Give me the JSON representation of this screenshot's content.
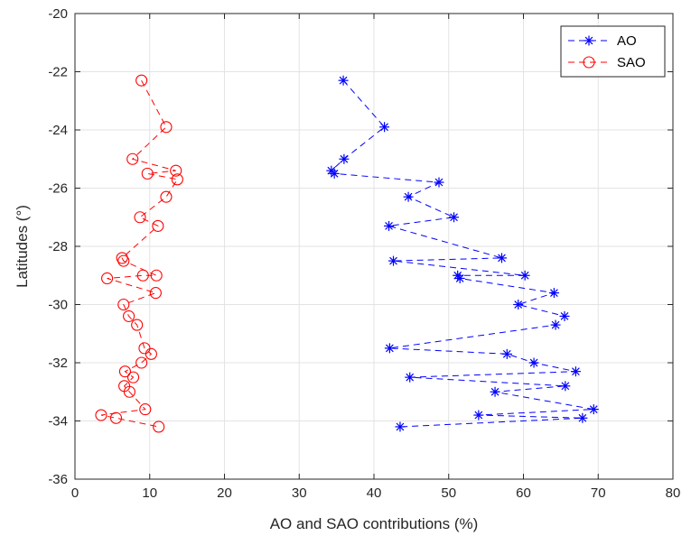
{
  "chart_data": {
    "type": "line",
    "xlabel": "AO and SAO contributions (%)",
    "ylabel": "Latitudes (°)",
    "xlim": [
      0,
      80
    ],
    "ylim": [
      -36,
      -20
    ],
    "xticks": [
      0,
      10,
      20,
      30,
      40,
      50,
      60,
      70,
      80
    ],
    "yticks": [
      -36,
      -34,
      -32,
      -30,
      -28,
      -26,
      -24,
      -22,
      -20
    ],
    "grid": true,
    "legend_position": "top-right",
    "series": [
      {
        "name": "AO",
        "color": "#0000FF",
        "marker": "asterisk",
        "line_style": "dashed",
        "points": [
          [
            35.9,
            -22.3
          ],
          [
            41.4,
            -23.9
          ],
          [
            36.0,
            -25.0
          ],
          [
            34.3,
            -25.4
          ],
          [
            34.7,
            -25.5
          ],
          [
            48.7,
            -25.8
          ],
          [
            44.6,
            -26.3
          ],
          [
            50.7,
            -27.0
          ],
          [
            42.0,
            -27.3
          ],
          [
            57.1,
            -28.4
          ],
          [
            42.6,
            -28.5
          ],
          [
            60.2,
            -29.0
          ],
          [
            51.2,
            -29.0
          ],
          [
            51.5,
            -29.1
          ],
          [
            64.1,
            -29.6
          ],
          [
            59.3,
            -30.0
          ],
          [
            65.5,
            -30.4
          ],
          [
            64.3,
            -30.7
          ],
          [
            42.1,
            -31.5
          ],
          [
            57.8,
            -31.7
          ],
          [
            61.4,
            -32.0
          ],
          [
            67.0,
            -32.3
          ],
          [
            44.8,
            -32.5
          ],
          [
            65.6,
            -32.8
          ],
          [
            56.2,
            -33.0
          ],
          [
            69.4,
            -33.6
          ],
          [
            54.0,
            -33.8
          ],
          [
            67.9,
            -33.9
          ],
          [
            43.5,
            -34.2
          ]
        ]
      },
      {
        "name": "SAO",
        "color": "#FF0000",
        "marker": "circle",
        "line_style": "dashed",
        "points": [
          [
            8.9,
            -22.3
          ],
          [
            12.2,
            -23.9
          ],
          [
            7.7,
            -25.0
          ],
          [
            13.5,
            -25.4
          ],
          [
            9.7,
            -25.5
          ],
          [
            13.7,
            -25.7
          ],
          [
            12.2,
            -26.3
          ],
          [
            8.7,
            -27.0
          ],
          [
            11.1,
            -27.3
          ],
          [
            6.3,
            -28.4
          ],
          [
            6.5,
            -28.5
          ],
          [
            10.9,
            -29.0
          ],
          [
            9.1,
            -29.0
          ],
          [
            4.3,
            -29.1
          ],
          [
            10.8,
            -29.6
          ],
          [
            6.5,
            -30.0
          ],
          [
            7.2,
            -30.4
          ],
          [
            8.3,
            -30.7
          ],
          [
            9.3,
            -31.5
          ],
          [
            10.2,
            -31.7
          ],
          [
            8.9,
            -32.0
          ],
          [
            6.7,
            -32.3
          ],
          [
            7.8,
            -32.5
          ],
          [
            6.6,
            -32.8
          ],
          [
            7.3,
            -33.0
          ],
          [
            9.4,
            -33.6
          ],
          [
            3.5,
            -33.8
          ],
          [
            5.5,
            -33.9
          ],
          [
            11.2,
            -34.2
          ]
        ]
      }
    ]
  }
}
